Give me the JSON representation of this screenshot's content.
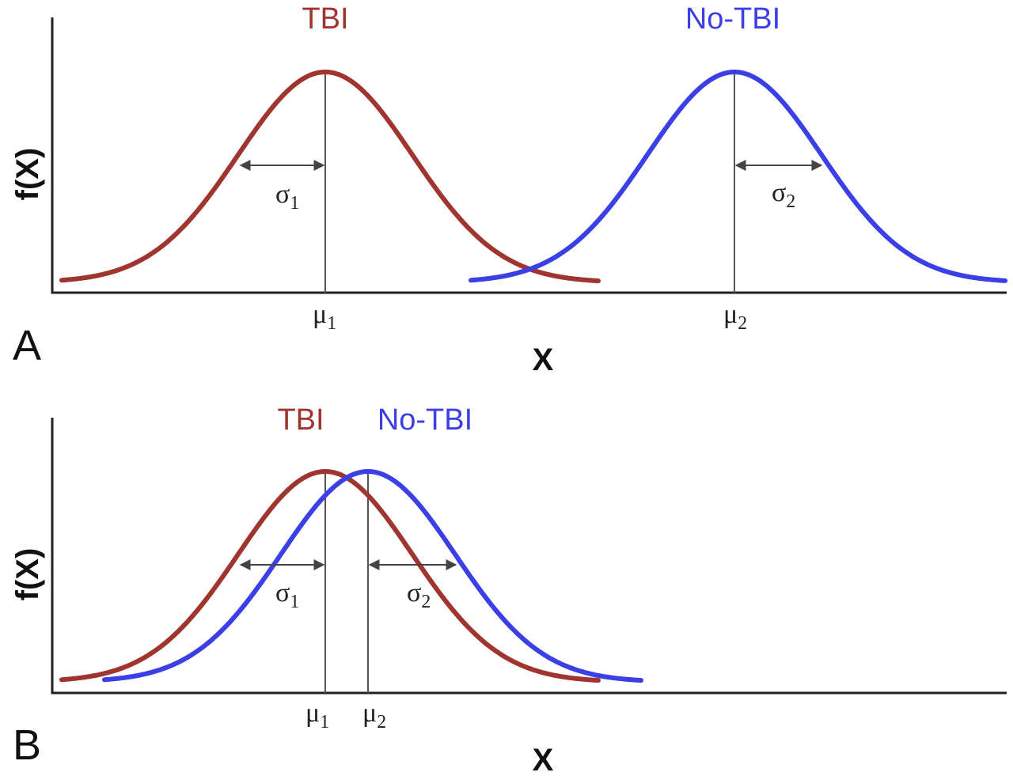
{
  "colors": {
    "tbi": "#a0342f",
    "no_tbi": "#3a3fe6",
    "axis": "#222222"
  },
  "panels": [
    {
      "letter": "A",
      "ylabel": "f(X)",
      "xlabel": "X",
      "series": [
        {
          "name": "TBI",
          "mu_label": "μ",
          "mu_sub": "1",
          "sigma_label": "σ",
          "sigma_sub": "1"
        },
        {
          "name": "No-TBI",
          "mu_label": "μ",
          "mu_sub": "2",
          "sigma_label": "σ",
          "sigma_sub": "2"
        }
      ]
    },
    {
      "letter": "B",
      "ylabel": "f(X)",
      "xlabel": "X",
      "series": [
        {
          "name": "TBI",
          "mu_label": "μ",
          "mu_sub": "1",
          "sigma_label": "σ",
          "sigma_sub": "1"
        },
        {
          "name": "No-TBI",
          "mu_label": "μ",
          "mu_sub": "2",
          "sigma_label": "σ",
          "sigma_sub": "2"
        }
      ]
    }
  ]
}
